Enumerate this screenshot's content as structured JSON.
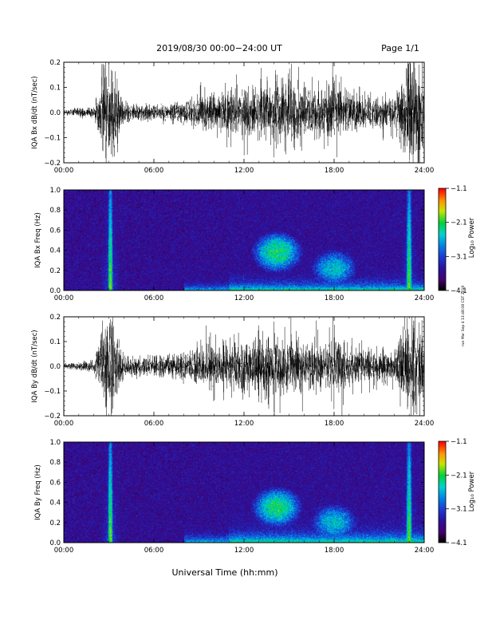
{
  "header": {
    "title": "2019/08/30  00:00−24:00 UT",
    "page": "Page 1/1"
  },
  "xaxis": {
    "label": "Universal Time (hh:mm)",
    "range_hours": [
      0,
      24
    ],
    "ticks": [
      "00:00",
      "06:00",
      "12:00",
      "18:00",
      "24:00"
    ]
  },
  "side_note": "run Mar Sep 4 13:48:08 CST 2019",
  "chart_data": [
    {
      "type": "line",
      "id": "bx_waveform",
      "ylabel": "IQA Bx dB/dt (nT/sec)",
      "ylim": [
        -0.2,
        0.2
      ],
      "yticks": [
        "0.2",
        "0.1",
        "0.0",
        "−0.1",
        "−0.2"
      ],
      "envelope": {
        "hours": [
          0,
          1,
          2,
          2.8,
          3.2,
          3.6,
          4,
          5,
          6,
          7,
          8,
          9,
          10,
          11,
          12,
          13,
          14,
          15,
          16,
          17,
          18,
          19,
          20,
          21,
          22,
          23,
          23.5,
          24
        ],
        "amplitude": [
          0.012,
          0.018,
          0.022,
          0.2,
          0.2,
          0.12,
          0.04,
          0.03,
          0.03,
          0.032,
          0.045,
          0.06,
          0.07,
          0.08,
          0.085,
          0.1,
          0.13,
          0.11,
          0.09,
          0.08,
          0.1,
          0.075,
          0.06,
          0.055,
          0.055,
          0.2,
          0.2,
          0.1
        ]
      }
    },
    {
      "type": "heatmap",
      "id": "bx_spectrogram",
      "ylabel": "IQA Bx Freq (Hz)",
      "ylim": [
        0,
        1.0
      ],
      "yticks": [
        "1.0",
        "0.8",
        "0.6",
        "0.4",
        "0.2",
        "0.0"
      ],
      "colorbar": {
        "label": "Log₁₀ Power",
        "range": [
          -4.1,
          -1.1
        ],
        "ticks": [
          "−1.1",
          "−2.1",
          "−3.1",
          "−4.1"
        ]
      },
      "features": [
        {
          "kind": "vertical_burst",
          "hour": 3.1,
          "power": -1.8
        },
        {
          "kind": "vertical_burst",
          "hour": 23.0,
          "power": -1.8
        },
        {
          "kind": "low_freq_band",
          "from_hour": 8,
          "to_hour": 24,
          "max_freq": 0.08,
          "power": -2.3
        },
        {
          "kind": "emission_blob",
          "hour_center": 14.2,
          "freq_center": 0.38,
          "power": -2.2
        },
        {
          "kind": "emission_blob",
          "hour_center": 18.0,
          "freq_center": 0.22,
          "power": -2.5
        }
      ]
    },
    {
      "type": "line",
      "id": "by_waveform",
      "ylabel": "IQA By dB/dt (nT/sec)",
      "ylim": [
        -0.2,
        0.2
      ],
      "yticks": [
        "0.2",
        "0.1",
        "0.0",
        "−0.1",
        "−0.2"
      ],
      "envelope": {
        "hours": [
          0,
          1,
          2,
          2.8,
          3.2,
          3.6,
          4,
          5,
          6,
          7,
          8,
          9,
          10,
          11,
          12,
          13,
          14,
          15,
          16,
          17,
          18,
          19,
          20,
          21,
          22,
          23,
          23.5,
          24
        ],
        "amplitude": [
          0.01,
          0.015,
          0.02,
          0.2,
          0.2,
          0.12,
          0.04,
          0.035,
          0.04,
          0.045,
          0.06,
          0.07,
          0.08,
          0.085,
          0.09,
          0.1,
          0.12,
          0.1,
          0.09,
          0.085,
          0.1,
          0.08,
          0.065,
          0.06,
          0.06,
          0.2,
          0.2,
          0.1
        ]
      }
    },
    {
      "type": "heatmap",
      "id": "by_spectrogram",
      "ylabel": "IQA By Freq (Hz)",
      "ylim": [
        0,
        1.0
      ],
      "yticks": [
        "1.0",
        "0.8",
        "0.6",
        "0.4",
        "0.2",
        "0.0"
      ],
      "colorbar": {
        "label": "Log₁₀ Power",
        "range": [
          -4.1,
          -1.1
        ],
        "ticks": [
          "−1.1",
          "−2.1",
          "−3.1",
          "−4.1"
        ]
      },
      "features": [
        {
          "kind": "vertical_burst",
          "hour": 3.1,
          "power": -1.8
        },
        {
          "kind": "vertical_burst",
          "hour": 23.0,
          "power": -1.8
        },
        {
          "kind": "low_freq_band",
          "from_hour": 8,
          "to_hour": 24,
          "max_freq": 0.1,
          "power": -2.3
        },
        {
          "kind": "emission_blob",
          "hour_center": 14.2,
          "freq_center": 0.35,
          "power": -2.2
        },
        {
          "kind": "emission_blob",
          "hour_center": 18.0,
          "freq_center": 0.2,
          "power": -2.5
        }
      ]
    }
  ]
}
